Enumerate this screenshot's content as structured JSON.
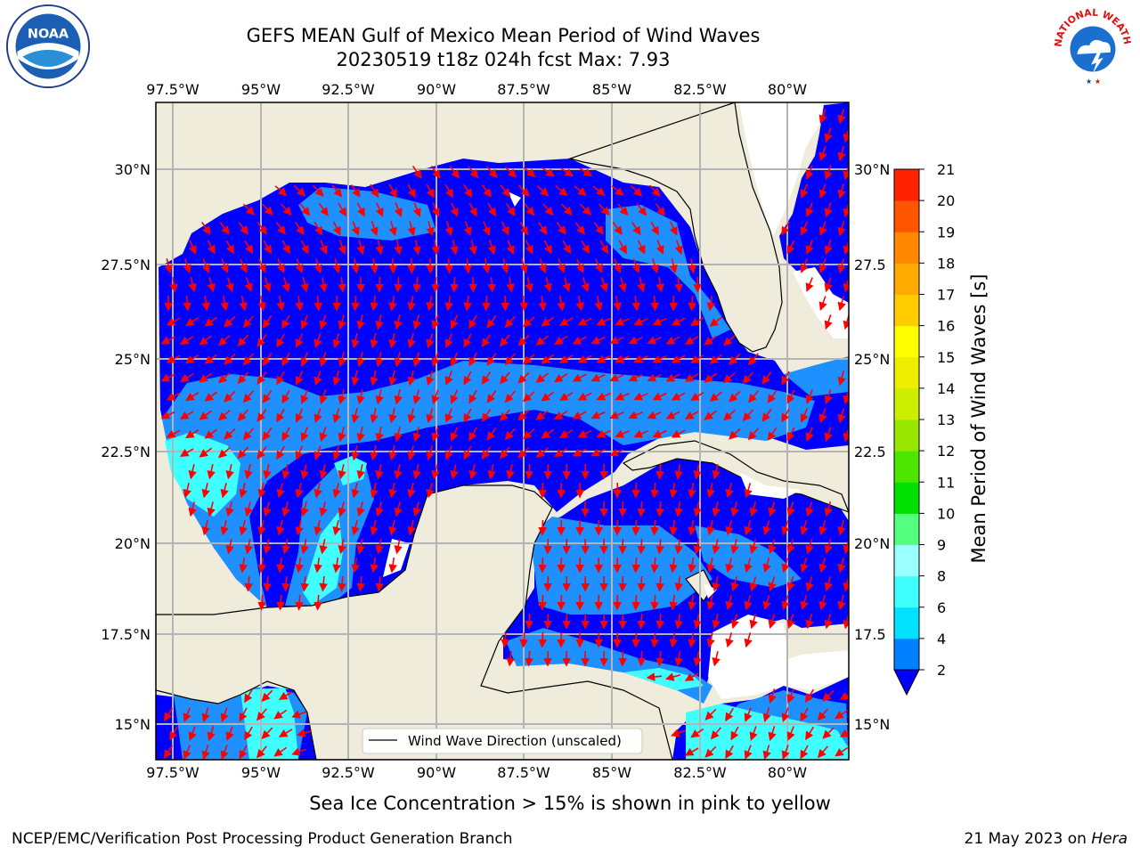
{
  "header": {
    "title_line1": "GEFS MEAN Gulf of Mexico Mean Period of Wind Waves",
    "title_line2": "20230519 t18z 024h fcst   Max: 7.93"
  },
  "logos": {
    "left": "noaa-logo",
    "left_text": "NOAA",
    "right": "national-weather-service-logo",
    "right_text": "NATIONAL WEATHER SERVICE"
  },
  "map": {
    "lon_labels": [
      "97.5°W",
      "95°W",
      "92.5°W",
      "90°W",
      "87.5°W",
      "85°W",
      "82.5°W",
      "80°W"
    ],
    "lat_labels": [
      "30°N",
      "27.5°N",
      "25°N",
      "22.5°N",
      "20°N",
      "17.5°N",
      "15°N"
    ],
    "right_lat_labels": [
      "30°N",
      "27.5",
      "25°N",
      "22.5",
      "20°N",
      "17.5",
      "15°N"
    ],
    "legend_label": "Wind Wave Direction (unscaled)",
    "land_color": "#efecdc",
    "arrow_color": "#ff0000"
  },
  "colorbar": {
    "label": "Mean Period of Wind Waves [s]",
    "levels": [
      "2",
      "4",
      "6",
      "8",
      "9",
      "10",
      "11",
      "12",
      "13",
      "14",
      "15",
      "16",
      "17",
      "18",
      "19",
      "20",
      "21"
    ],
    "colors": [
      "#0080ff",
      "#00e0ff",
      "#40ffff",
      "#99ffff",
      "#55ff80",
      "#00e000",
      "#4ce600",
      "#99e600",
      "#ccee00",
      "#eeee00",
      "#ffff00",
      "#ffcc00",
      "#ffaa00",
      "#ff8800",
      "#ff5500",
      "#ff2200",
      "#ff0000"
    ],
    "extend_color": "#0000ff"
  },
  "caption": "Sea Ice Concentration > 15% is shown in pink to yellow",
  "footer": {
    "left": "NCEP/EMC/Verification Post Processing Product Generation Branch",
    "right_prefix": "21 May 2023 on ",
    "right_host": "Hera"
  }
}
